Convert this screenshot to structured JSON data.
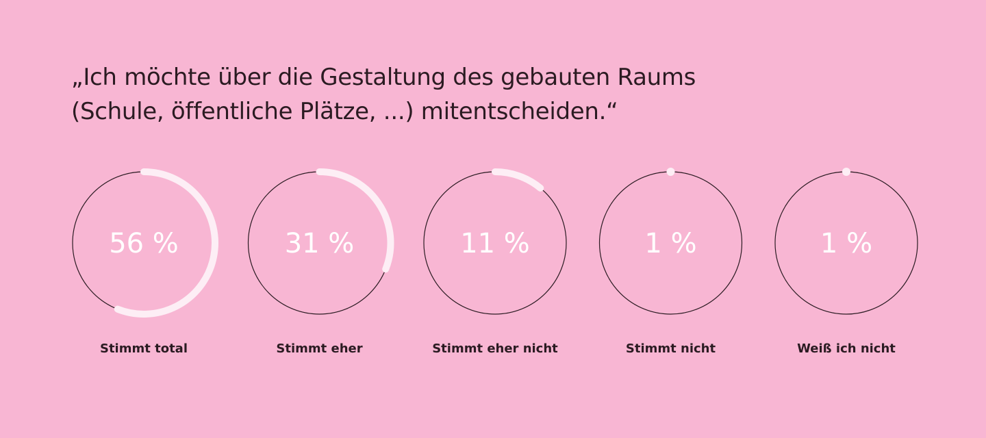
{
  "title_lines": [
    "„Ich möchte über die Gestaltung des gebauten Raums",
    "(Schule, öffentliche Plätze, ...) mitentscheiden.“"
  ],
  "chart_data": {
    "type": "pie",
    "title": "„Ich möchte über die Gestaltung des gebauten Raums (Schule, öffentliche Plätze, ...) mitentscheiden.“",
    "categories": [
      "Stimmt total",
      "Stimmt eher",
      "Stimmt eher nicht",
      "Stimmt nicht",
      "Weiß ich nicht"
    ],
    "values": [
      56,
      31,
      11,
      1,
      1
    ],
    "value_labels": [
      "56 %",
      "31 %",
      "11 %",
      "1 %",
      "1 %"
    ],
    "unit": "%",
    "colors": {
      "background": "#f8b6d3",
      "ring_outline": "#2b1b22",
      "progress_arc": "#fdeef5",
      "value_text": "#ffffff",
      "label_text": "#2b1b22"
    }
  }
}
